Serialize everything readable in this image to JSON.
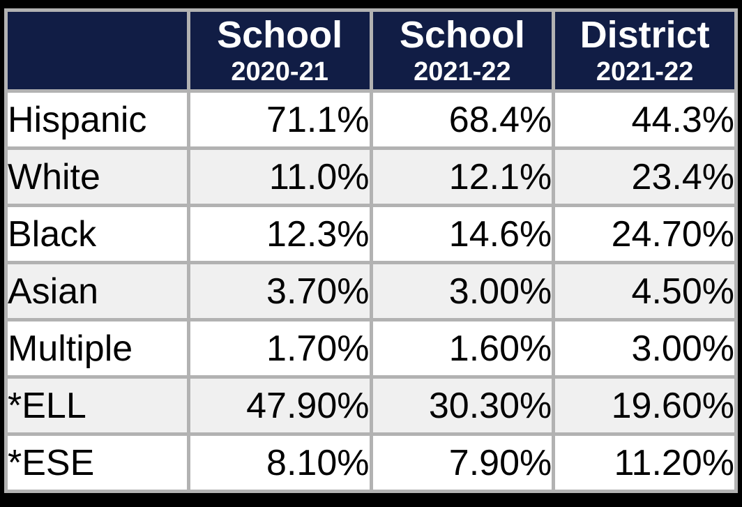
{
  "colors": {
    "header_bg": "#111d45",
    "header_text": "#ffffff",
    "border": "#b2b2b2",
    "row_bg": "#ffffff",
    "row_alt_bg": "#f0f0f0",
    "text": "#000000",
    "frame_bg": "#000000"
  },
  "table": {
    "columns": [
      {
        "line1": "",
        "line2": ""
      },
      {
        "line1": "School",
        "line2": "2020-21"
      },
      {
        "line1": "School",
        "line2": "2021-22"
      },
      {
        "line1": "District",
        "line2": "2021-22"
      }
    ],
    "rows": [
      {
        "label": "Hispanic",
        "values": [
          "71.1%",
          "68.4%",
          "44.3%"
        ]
      },
      {
        "label": "White",
        "values": [
          "11.0%",
          "12.1%",
          "23.4%"
        ]
      },
      {
        "label": "Black",
        "values": [
          "12.3%",
          "14.6%",
          "24.70%"
        ]
      },
      {
        "label": "Asian",
        "values": [
          "3.70%",
          "3.00%",
          "4.50%"
        ]
      },
      {
        "label": "Multiple",
        "values": [
          "1.70%",
          "1.60%",
          "3.00%"
        ]
      },
      {
        "label": "*ELL",
        "values": [
          "47.90%",
          "30.30%",
          "19.60%"
        ]
      },
      {
        "label": "*ESE",
        "values": [
          "8.10%",
          "7.90%",
          "11.20%"
        ]
      }
    ]
  },
  "chart_data": {
    "type": "table",
    "columns": [
      "",
      "School 2020-21",
      "School 2021-22",
      "District 2021-22"
    ],
    "rows": [
      [
        "Hispanic",
        "71.1%",
        "68.4%",
        "44.3%"
      ],
      [
        "White",
        "11.0%",
        "12.1%",
        "23.4%"
      ],
      [
        "Black",
        "12.3%",
        "14.6%",
        "24.70%"
      ],
      [
        "Asian",
        "3.70%",
        "3.00%",
        "4.50%"
      ],
      [
        "Multiple",
        "1.70%",
        "1.60%",
        "3.00%"
      ],
      [
        "*ELL",
        "47.90%",
        "30.30%",
        "19.60%"
      ],
      [
        "*ESE",
        "8.10%",
        "7.90%",
        "11.20%"
      ]
    ]
  }
}
